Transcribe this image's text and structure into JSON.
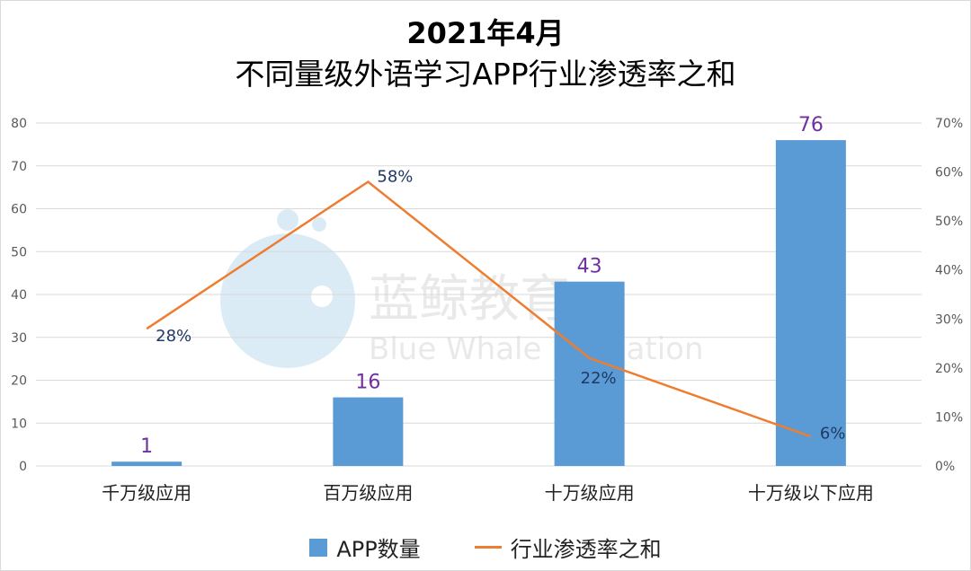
{
  "chart_data": {
    "type": "bar+line",
    "title": "2021年4月",
    "subtitle": "不同量级外语学习APP行业渗透率之和",
    "categories": [
      "千万级应用",
      "百万级应用",
      "十万级应用",
      "十万级以下应用"
    ],
    "series": [
      {
        "name": "APP数量",
        "type": "bar",
        "axis": "left",
        "values": [
          1,
          16,
          43,
          76
        ],
        "labels": [
          "1",
          "16",
          "43",
          "76"
        ],
        "color": "#5b9bd5",
        "label_color": "#7030a0"
      },
      {
        "name": "行业渗透率之和",
        "type": "line",
        "axis": "right",
        "values": [
          0.28,
          0.58,
          0.22,
          0.06
        ],
        "labels": [
          "28%",
          "58%",
          "22%",
          "6%"
        ],
        "color": "#ed7d31",
        "label_color": "#203864"
      }
    ],
    "y_left": {
      "range": [
        0,
        80
      ],
      "ticks": [
        "0",
        "10",
        "20",
        "30",
        "40",
        "50",
        "60",
        "70",
        "80"
      ]
    },
    "y_right": {
      "range": [
        0,
        0.7
      ],
      "ticks": [
        "0%",
        "10%",
        "20%",
        "30%",
        "40%",
        "50%",
        "60%",
        "70%"
      ]
    },
    "grid": true,
    "legend_position": "bottom"
  },
  "watermark": {
    "cn": "蓝鲸教育",
    "en": "Blue Whale Education"
  }
}
